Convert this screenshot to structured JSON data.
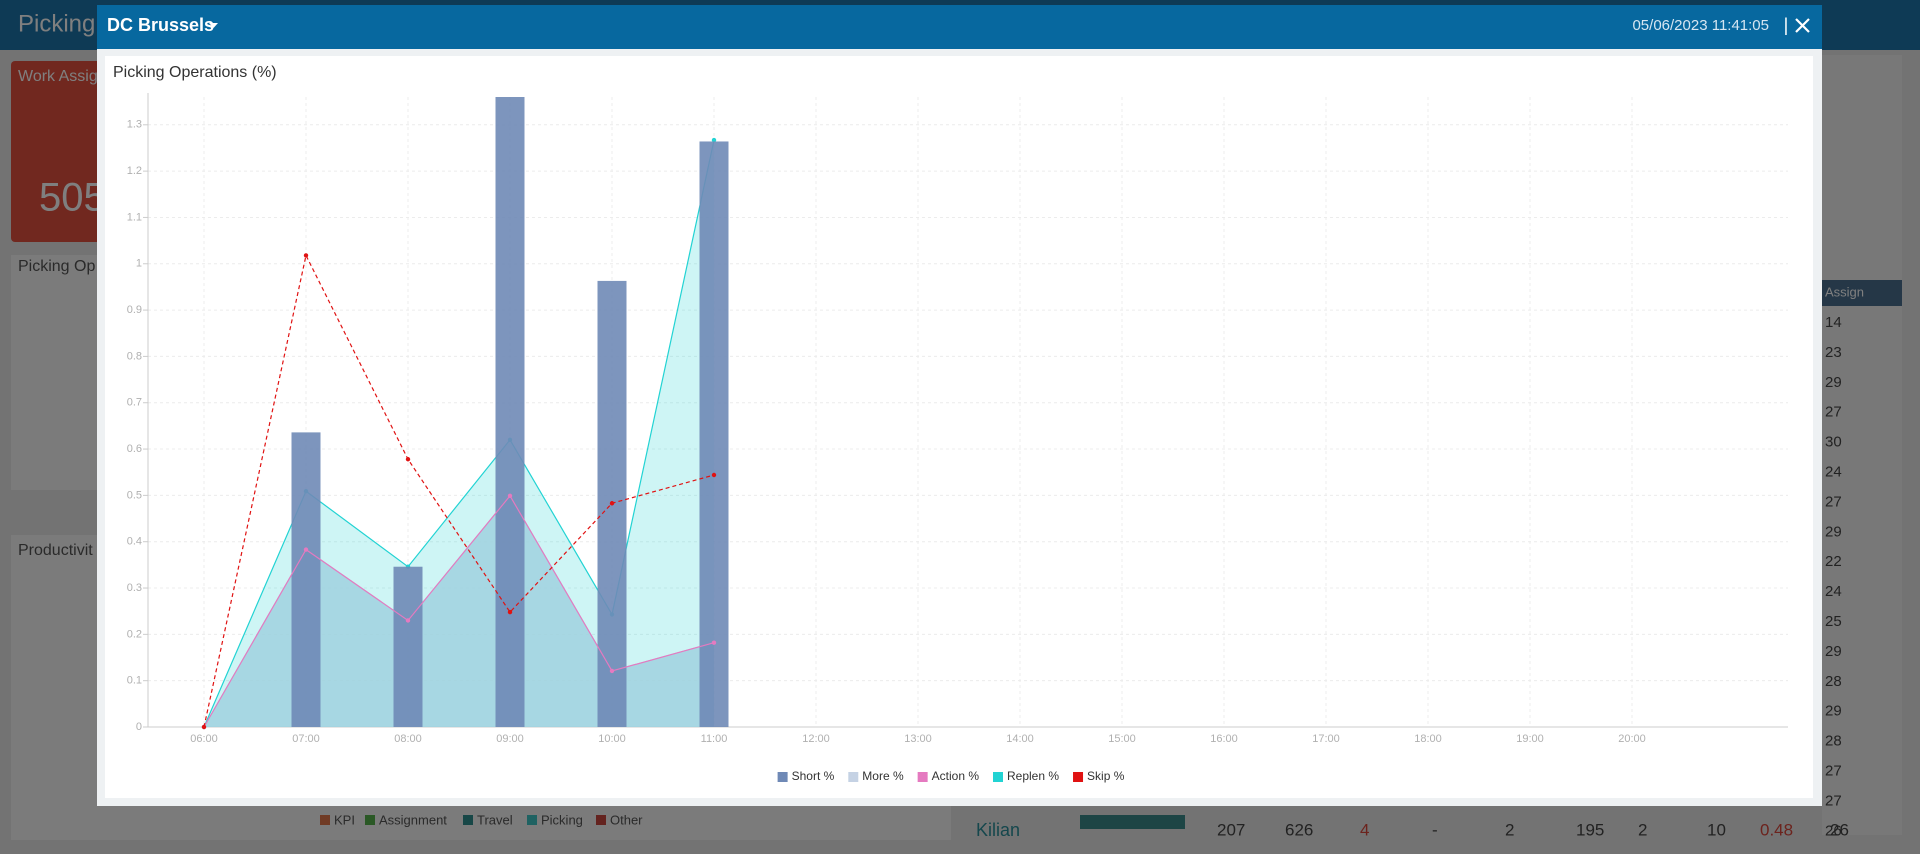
{
  "header": {
    "title": "Picking"
  },
  "background": {
    "card_title": "Work Assig",
    "card_value": "505",
    "panel_1_title": "Picking Op",
    "panel_2_title": "Productivit",
    "legend": [
      "KPI",
      "Assignment",
      "Travel",
      "Picking",
      "Other"
    ],
    "table_header": "Assign",
    "table_column": [
      "14",
      "23",
      "29",
      "27",
      "30",
      "24",
      "27",
      "29",
      "22",
      "24",
      "25",
      "29",
      "28",
      "29",
      "28",
      "27",
      "27",
      "26"
    ],
    "bottom_row": [
      "Kilian",
      "207",
      "626",
      "4",
      "-",
      "2",
      "195",
      "2",
      "10",
      "0.48",
      "26"
    ]
  },
  "modal": {
    "title": "DC Brussels",
    "datetime": "05/06/2023 11:41:05",
    "separator": "|"
  },
  "chart_data": {
    "type": "combo",
    "title": "Picking Operations (%)",
    "categories": [
      "06:00",
      "07:00",
      "08:00",
      "09:00",
      "10:00",
      "11:00",
      "12:00",
      "13:00",
      "14:00",
      "15:00",
      "16:00",
      "17:00",
      "18:00",
      "19:00",
      "20:00"
    ],
    "ylim": [
      0,
      1.36
    ],
    "yticks": [
      0,
      0.1,
      0.2,
      0.3,
      0.4,
      0.5,
      0.6,
      0.7,
      0.8,
      0.9,
      1,
      1.1,
      1.2,
      1.3
    ],
    "grid": true,
    "legend": "bottom",
    "series": [
      {
        "name": "Short %",
        "type": "bar",
        "color": "#6f89b6",
        "values": [
          0,
          0.636,
          0.346,
          1.36,
          0.963,
          1.264,
          null,
          null,
          null,
          null,
          null,
          null,
          null,
          null,
          null
        ]
      },
      {
        "name": "More %",
        "type": "area",
        "color": "#c5d2e4",
        "values": [
          0,
          0.383,
          0.23,
          0.499,
          0.121,
          0.182,
          null,
          null,
          null,
          null,
          null,
          null,
          null,
          null,
          null
        ]
      },
      {
        "name": "Action %",
        "type": "line",
        "color": "#e57ac0",
        "values": [
          0,
          0.383,
          0.23,
          0.499,
          0.121,
          0.182,
          null,
          null,
          null,
          null,
          null,
          null,
          null,
          null,
          null
        ]
      },
      {
        "name": "Replen %",
        "type": "area",
        "color": "#22d3d3",
        "values": [
          0,
          0.509,
          0.346,
          0.62,
          0.243,
          1.267,
          null,
          null,
          null,
          null,
          null,
          null,
          null,
          null,
          null
        ]
      },
      {
        "name": "Skip %",
        "type": "line",
        "dashed": true,
        "color": "#e01212",
        "values": [
          0,
          1.018,
          0.578,
          0.248,
          0.483,
          0.544,
          null,
          null,
          null,
          null,
          null,
          null,
          null,
          null,
          null
        ]
      }
    ]
  }
}
